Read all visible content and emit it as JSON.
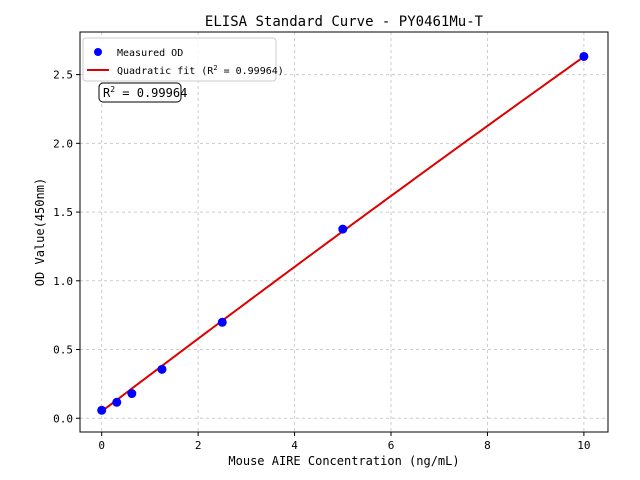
{
  "chart_data": {
    "type": "scatter",
    "title": "ELISA Standard Curve - PY0461Mu-T",
    "xlabel": "Mouse AIRE Concentration (ng/mL)",
    "ylabel": "OD Value(450nm)",
    "xlim": [
      -0.45,
      10.5
    ],
    "ylim": [
      -0.1,
      2.81
    ],
    "xticks": [
      0,
      2,
      4,
      6,
      8,
      10
    ],
    "yticks": [
      0.0,
      0.5,
      1.0,
      1.5,
      2.0,
      2.5
    ],
    "xtick_labels": [
      "0",
      "2",
      "4",
      "6",
      "8",
      "10"
    ],
    "ytick_labels": [
      "0.0",
      "0.5",
      "1.0",
      "1.5",
      "2.0",
      "2.5"
    ],
    "grid": true,
    "legend_position": "top-left",
    "series": [
      {
        "name": "Measured OD",
        "kind": "scatter",
        "color": "#0000ff",
        "x": [
          0,
          0.3125,
          0.625,
          1.25,
          2.5,
          5,
          10
        ],
        "y": [
          0.058,
          0.116,
          0.18,
          0.356,
          0.698,
          1.376,
          2.632
        ]
      },
      {
        "name": "Quadratic fit (R² = 0.99964)",
        "kind": "line",
        "color": "#dd0000",
        "coefficients": {
          "a": 0.05,
          "b": 0.266,
          "c": -0.0008
        },
        "x_range": [
          0,
          10
        ]
      }
    ],
    "annotation": {
      "prefix": "R",
      "sup": "2",
      "text": " = 0.99964"
    },
    "legend": {
      "entry1": "Measured OD",
      "entry2_prefix": "Quadratic fit (R",
      "entry2_sup": "2",
      "entry2_suffix": " = 0.99964)"
    }
  }
}
